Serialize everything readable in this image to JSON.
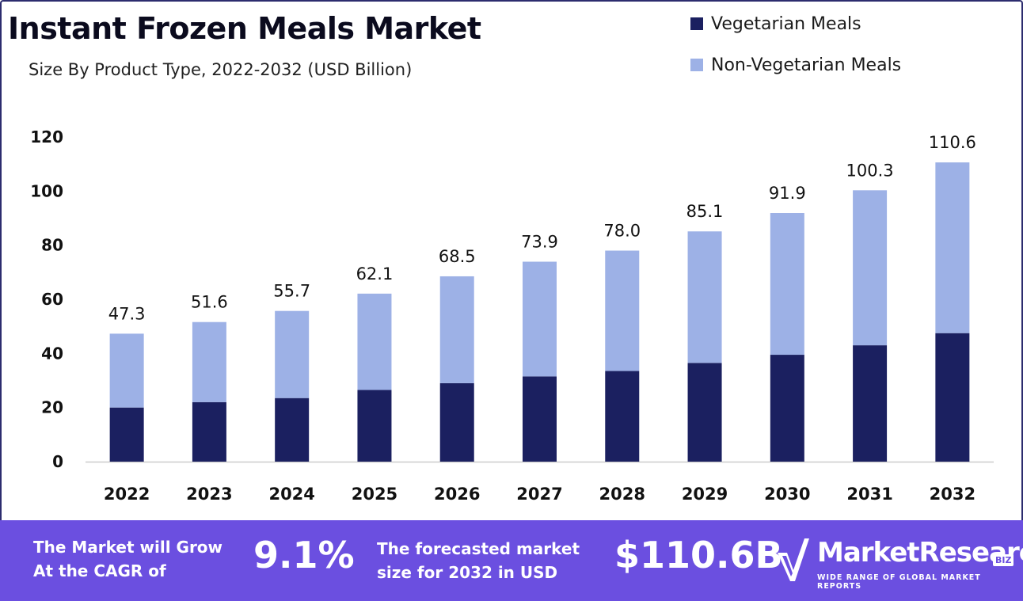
{
  "header": {
    "title": "Instant Frozen Meals Market",
    "subtitle": "Size By Product Type, 2022-2032 (USD Billion)"
  },
  "colors": {
    "vegetarian": "#1b2060",
    "non_vegetarian": "#9db1e6",
    "banner": "#6b4fe0",
    "axis": "#cccccc"
  },
  "chart_data": {
    "type": "bar",
    "stacked": true,
    "categories": [
      "2022",
      "2023",
      "2024",
      "2025",
      "2026",
      "2027",
      "2028",
      "2029",
      "2030",
      "2031",
      "2032"
    ],
    "series": [
      {
        "name": "Vegetarian Meals",
        "values": [
          20.0,
          22.0,
          23.5,
          26.5,
          29.0,
          31.5,
          33.5,
          36.5,
          39.5,
          43.0,
          47.5
        ]
      },
      {
        "name": "Non-Vegetarian Meals",
        "values": [
          27.3,
          29.6,
          32.2,
          35.6,
          39.5,
          42.4,
          44.5,
          48.6,
          52.4,
          57.3,
          63.1
        ]
      }
    ],
    "totals": [
      "47.3",
      "51.6",
      "55.7",
      "62.1",
      "68.5",
      "73.9",
      "78.0",
      "85.1",
      "91.9",
      "100.3",
      "110.6"
    ],
    "ylim": [
      0,
      120
    ],
    "yticks": [
      "0",
      "20",
      "40",
      "60",
      "80",
      "100",
      "120"
    ],
    "grid": false,
    "legend_position": "top-right"
  },
  "banner": {
    "cagr_text_line1": "The Market will Grow",
    "cagr_text_line2": "At the CAGR of",
    "cagr_value": "9.1%",
    "forecast_text_line1": "The forecasted market",
    "forecast_text_line2": "size for 2032 in USD",
    "forecast_value": "$110.6B",
    "logo_name": "MarketResearch",
    "logo_badge": "BIZ",
    "logo_tagline": "WIDE RANGE OF GLOBAL MARKET REPORTS"
  }
}
